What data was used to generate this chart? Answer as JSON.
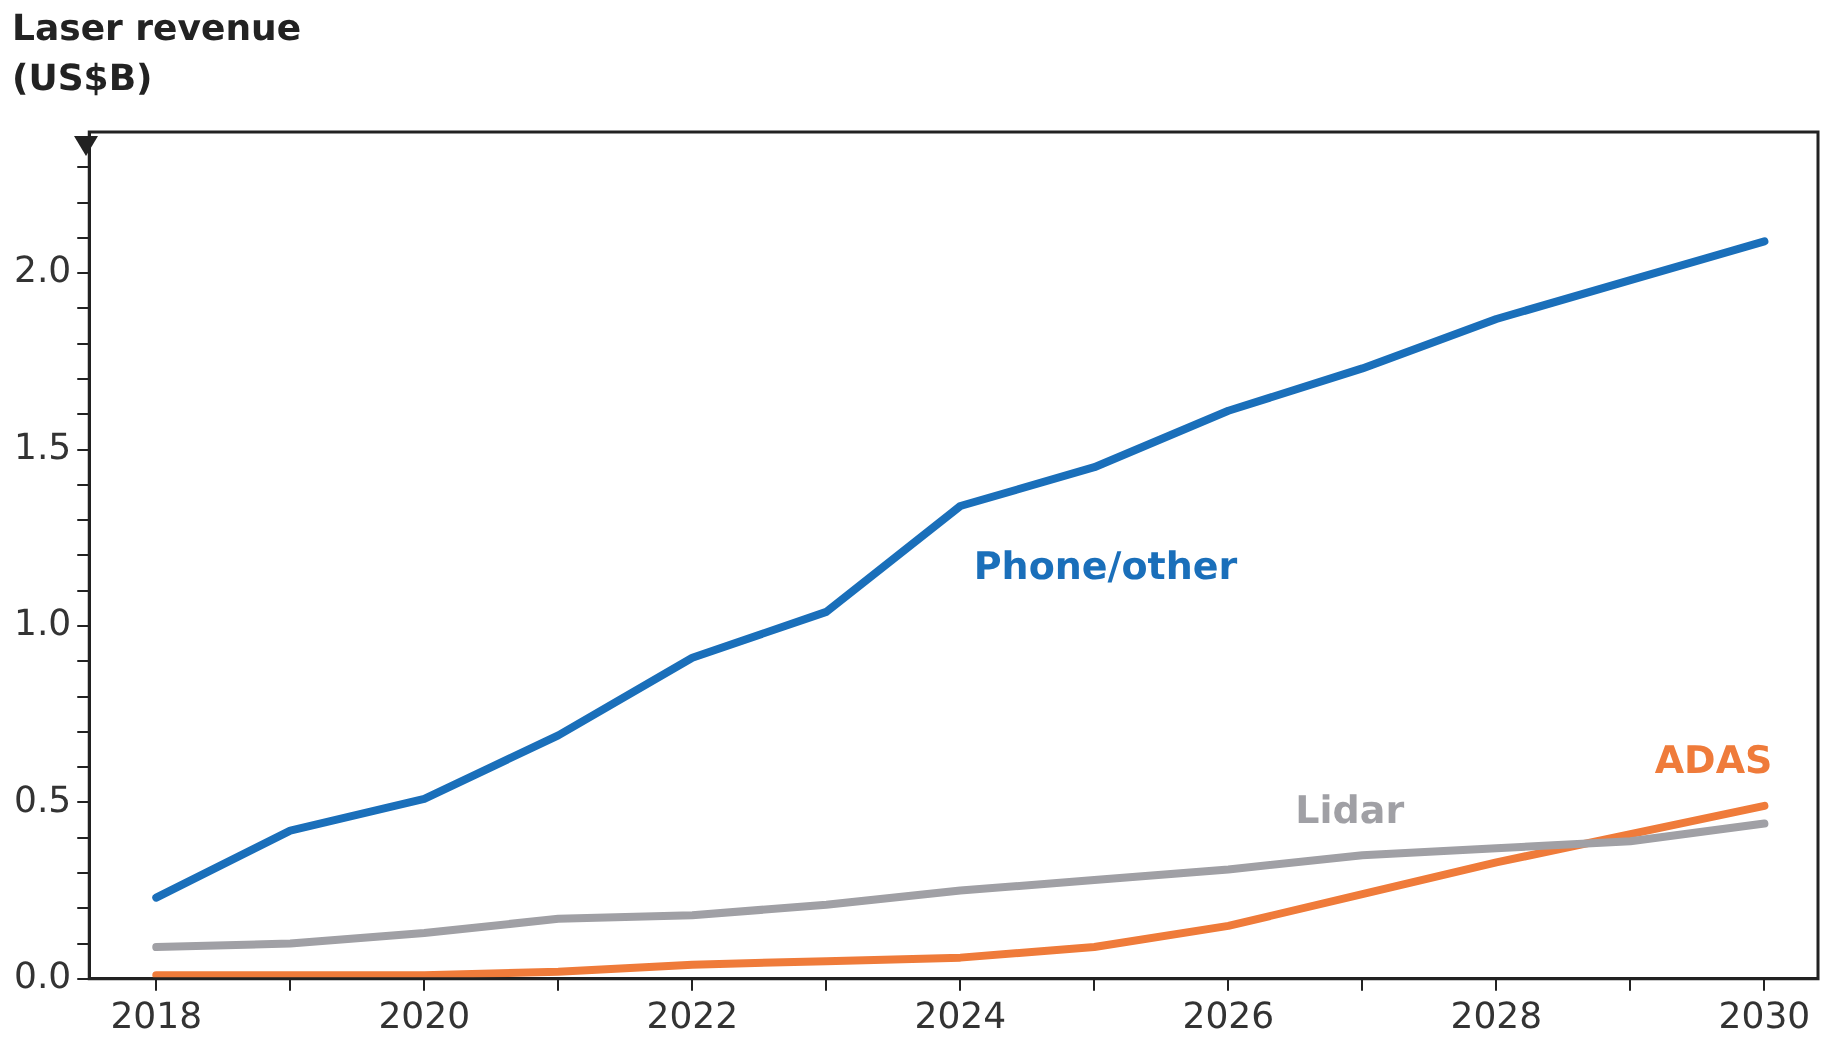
{
  "chart_data": {
    "type": "line",
    "ylabel": "Laser revenue (US$B)",
    "x": [
      2018,
      2019,
      2020,
      2021,
      2022,
      2023,
      2024,
      2025,
      2026,
      2027,
      2028,
      2029,
      2030
    ],
    "series": [
      {
        "name": "Phone/other",
        "color": "#1a6fba",
        "values": [
          0.23,
          0.42,
          0.51,
          0.69,
          0.91,
          1.04,
          1.34,
          1.45,
          1.61,
          1.73,
          1.87,
          1.98,
          2.09
        ]
      },
      {
        "name": "Lidar",
        "color": "#a0a0a5",
        "values": [
          0.09,
          0.1,
          0.13,
          0.17,
          0.18,
          0.21,
          0.25,
          0.28,
          0.31,
          0.35,
          0.37,
          0.39,
          0.44
        ]
      },
      {
        "name": "ADAS",
        "color": "#ef7b3a",
        "values": [
          0.01,
          0.01,
          0.01,
          0.02,
          0.04,
          0.05,
          0.06,
          0.09,
          0.15,
          0.24,
          0.33,
          0.41,
          0.49
        ]
      }
    ],
    "xlim": [
      2017.5,
      2030.4
    ],
    "xticks": [
      2018,
      {
        "value": 2019,
        "label": null
      },
      2020,
      {
        "value": 2021,
        "label": null
      },
      2022,
      {
        "value": 2023,
        "label": null
      },
      2024,
      {
        "value": 2025,
        "label": null
      },
      2026,
      {
        "value": 2027,
        "label": null
      },
      2028,
      {
        "value": 2029,
        "label": null
      },
      2030
    ],
    "ylim": [
      0,
      2.4
    ],
    "yticks": [
      {
        "value": 0,
        "label": "0.0"
      },
      {
        "value": 0.1,
        "label": null
      },
      {
        "value": 0.2,
        "label": null
      },
      {
        "value": 0.3,
        "label": null
      },
      {
        "value": 0.4,
        "label": null
      },
      0.5,
      {
        "value": 0.6,
        "label": null
      },
      {
        "value": 0.7,
        "label": null
      },
      {
        "value": 0.8,
        "label": null
      },
      {
        "value": 0.9,
        "label": null
      },
      {
        "value": 1,
        "label": "1.0"
      },
      {
        "value": 1.1,
        "label": null
      },
      {
        "value": 1.2,
        "label": null
      },
      {
        "value": 1.3,
        "label": null
      },
      {
        "value": 1.4,
        "label": null
      },
      1.5,
      {
        "value": 1.6,
        "label": null
      },
      {
        "value": 1.7,
        "label": null
      },
      {
        "value": 1.8,
        "label": null
      },
      {
        "value": 1.9,
        "label": null
      },
      {
        "value": 2,
        "label": "2.0"
      },
      {
        "value": 2.1,
        "label": null
      },
      {
        "value": 2.2,
        "label": null
      },
      {
        "value": 2.3,
        "label": null
      }
    ],
    "grid": false,
    "legend": false,
    "marker": "none",
    "line_style": "solid"
  }
}
